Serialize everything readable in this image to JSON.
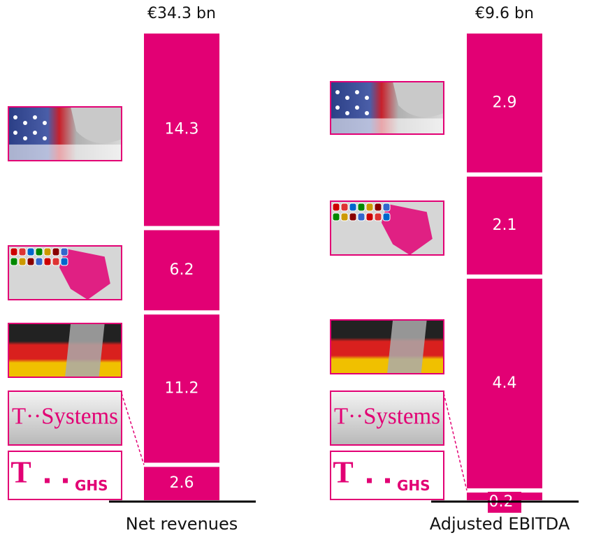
{
  "logos": {
    "t": "T",
    "t_systems": "T··Systems",
    "ghs": "GHS"
  },
  "chart_data": [
    {
      "type": "stacked_bar",
      "title": "€34.3 bn",
      "xlabel": "Net revenues",
      "values": [
        2.6,
        11.2,
        6.2,
        14.3
      ],
      "color": "#e20074"
    },
    {
      "type": "stacked_bar",
      "title": "€9.6 bn",
      "xlabel": "Adjusted EBITDA",
      "values": [
        0.2,
        4.4,
        2.1,
        2.9
      ],
      "color": "#e20074"
    }
  ]
}
